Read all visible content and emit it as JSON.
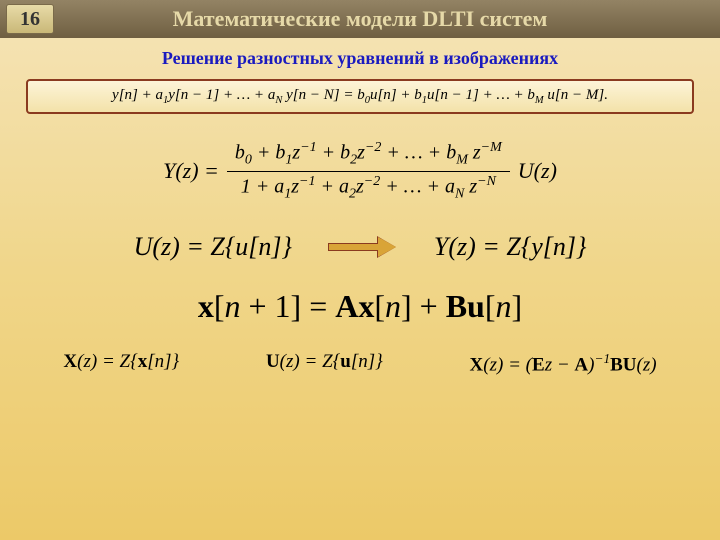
{
  "colors": {
    "header_grad_top": "#938364",
    "header_grad_bottom": "#6f5f42",
    "bg_top": "#f5e4b8",
    "bg_bottom": "#ecc968",
    "border_box": "#8a3a1f",
    "subtitle": "#1a1abf",
    "arrow_fill": "#d9a437"
  },
  "slide_number": "16",
  "title": "Математические модели DLTI систем",
  "subtitle": "Решение разностных уравнений в изображениях",
  "difference_eq": "y[n] + a₁y[n − 1] + … + a_N y[n − N] = b₀u[n] + b₁u[n − 1] + … + b_M u[n − M].",
  "tf": {
    "lhs": "Y(z) =",
    "numerator": "b₀ + b₁z⁻¹ + b₂z⁻² + … + b_M z⁻ᴹ",
    "denominator": "1 + a₁z⁻¹ + a₂z⁻² + … + a_N z⁻ᴺ",
    "rhs": "U(z)"
  },
  "z_pair": {
    "u": "U(z) = Z{u[n]}",
    "y": "Y(z) = Z{y[n]}"
  },
  "state_eq": {
    "text": "x[n + 1] = Ax[n] + Bu[n]"
  },
  "bottom": {
    "x": "X(z) = Z{x[n]}",
    "u": "U(z) = Z{u[n]}",
    "sol": "X(z) = (Ez − A)⁻¹BU(z)"
  }
}
